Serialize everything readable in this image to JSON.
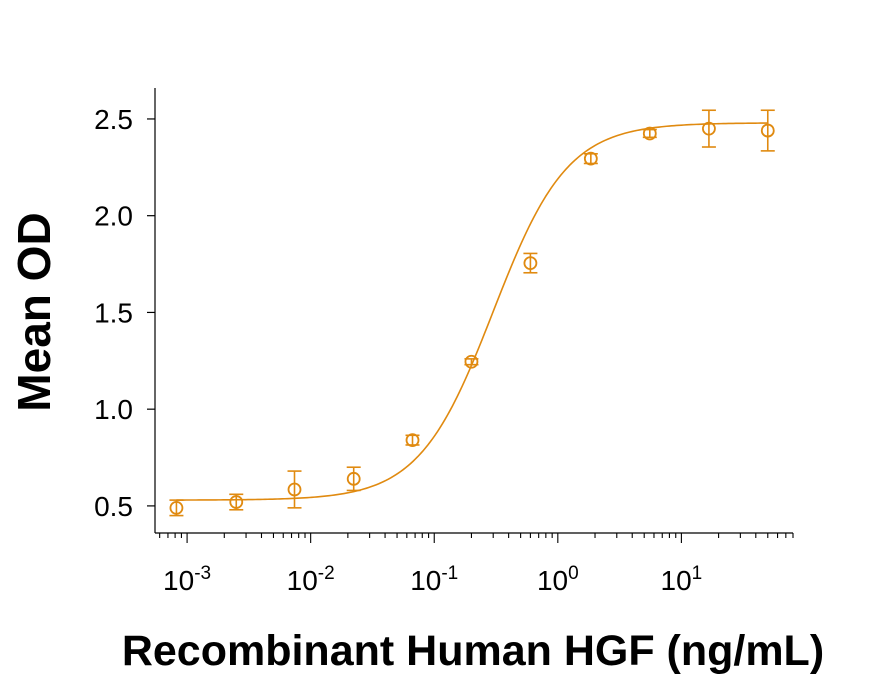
{
  "chart_data": {
    "type": "scatter",
    "xlabel": "Recombinant Human HGF (ng/mL)",
    "ylabel": "Mean OD",
    "xscale": "log",
    "xlim": [
      0.00055,
      80
    ],
    "ylim": [
      0.36,
      2.66
    ],
    "yticks": [
      0.5,
      1.0,
      1.5,
      2.0,
      2.5
    ],
    "ytick_labels": [
      "0.5",
      "1.0",
      "1.5",
      "2.0",
      "2.5"
    ],
    "xticks": [
      {
        "value": 0.001,
        "base": "10",
        "exp": "-3"
      },
      {
        "value": 0.01,
        "base": "10",
        "exp": "-2"
      },
      {
        "value": 0.1,
        "base": "10",
        "exp": "-1"
      },
      {
        "value": 1,
        "base": "10",
        "exp": "0"
      },
      {
        "value": 10,
        "base": "10",
        "exp": "1"
      }
    ],
    "color": "#e08a10",
    "grid": false,
    "legend": "none",
    "series": [
      {
        "x": [
          0.00082,
          0.0025,
          0.0074,
          0.0223,
          0.0667,
          0.2,
          0.6,
          1.85,
          5.55,
          16.7,
          50
        ],
        "y": [
          0.49,
          0.52,
          0.585,
          0.64,
          0.84,
          1.245,
          1.755,
          2.295,
          2.425,
          2.45,
          2.44
        ],
        "err": [
          0.04,
          0.04,
          0.095,
          0.06,
          0.025,
          0.015,
          0.05,
          0.025,
          0.02,
          0.095,
          0.105
        ]
      }
    ],
    "fit": {
      "model": "4PL",
      "bottom": 0.53,
      "top": 2.48,
      "ec50": 0.3,
      "hill": 1.45
    }
  }
}
